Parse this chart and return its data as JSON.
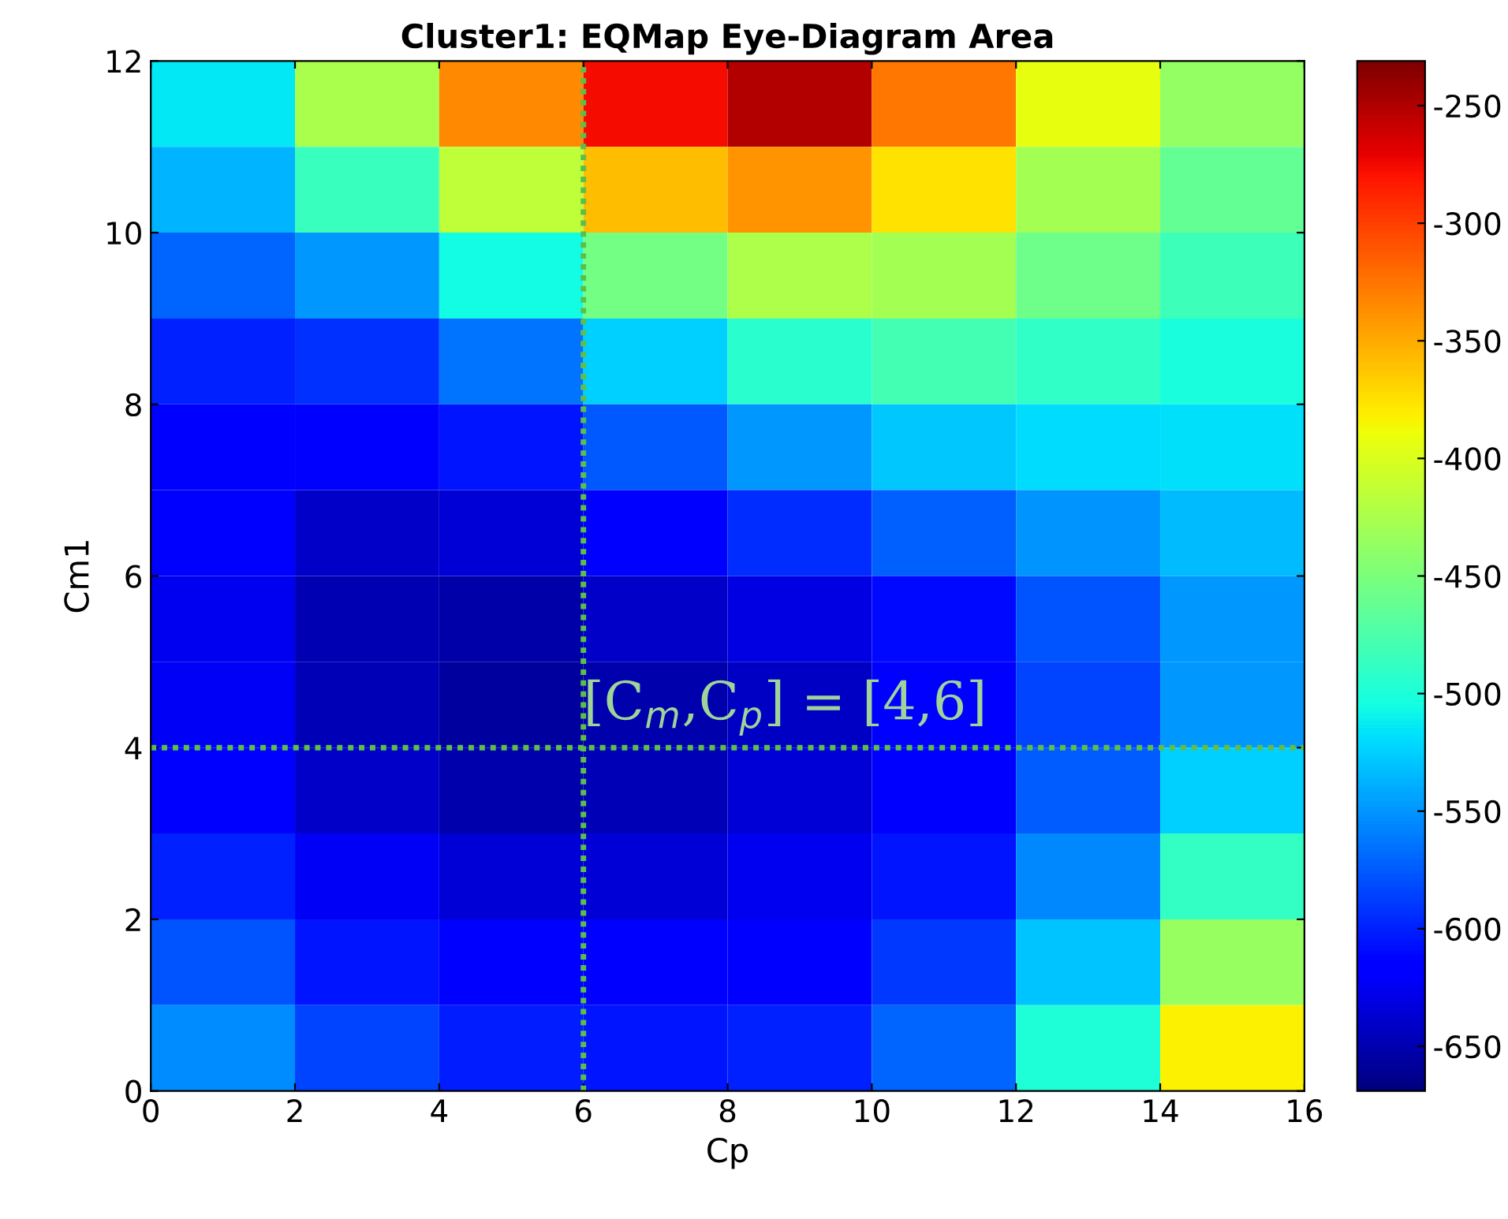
{
  "chart_data": {
    "type": "heatmap",
    "title": "Cluster1: EQMap Eye-Diagram Area",
    "xlabel": "Cp",
    "ylabel": "Cm1",
    "x": [
      1,
      3,
      5,
      7,
      9,
      11,
      13,
      15
    ],
    "y": [
      11.5,
      10.5,
      9.5,
      8.5,
      7.5,
      6.5,
      5.5,
      4.5,
      3.5,
      2.5,
      1.5,
      0.5
    ],
    "cells": [
      [
        -514,
        -425,
        -335,
        -276,
        -250,
        -326,
        -393,
        -438
      ],
      [
        -536,
        -485,
        -415,
        -358,
        -340,
        -375,
        -428,
        -463
      ],
      [
        -570,
        -548,
        -505,
        -455,
        -423,
        -428,
        -458,
        -483
      ],
      [
        -600,
        -593,
        -563,
        -525,
        -493,
        -480,
        -490,
        -503
      ],
      [
        -614,
        -621,
        -604,
        -575,
        -548,
        -528,
        -520,
        -518
      ],
      [
        -621,
        -640,
        -635,
        -614,
        -594,
        -573,
        -550,
        -533
      ],
      [
        -625,
        -649,
        -653,
        -641,
        -630,
        -610,
        -578,
        -548
      ],
      [
        -623,
        -648,
        -656,
        -651,
        -643,
        -621,
        -585,
        -548
      ],
      [
        -615,
        -640,
        -651,
        -648,
        -636,
        -614,
        -574,
        -525
      ],
      [
        -600,
        -624,
        -636,
        -635,
        -625,
        -604,
        -556,
        -488
      ],
      [
        -578,
        -604,
        -616,
        -619,
        -613,
        -589,
        -530,
        -435
      ],
      [
        -553,
        -585,
        -601,
        -605,
        -600,
        -570,
        -498,
        -383
      ]
    ],
    "xlim": [
      0,
      16
    ],
    "ylim": [
      0,
      12
    ],
    "xticks": [
      0,
      2,
      4,
      6,
      8,
      10,
      12,
      14,
      16
    ],
    "yticks": [
      0,
      2,
      4,
      6,
      8,
      10,
      12
    ],
    "clim": [
      -669,
      -231
    ],
    "cticks": [
      -650,
      -600,
      -550,
      -500,
      -450,
      -400,
      -350,
      -300,
      -250
    ],
    "ref_lines": [
      {
        "axis": "y",
        "value": 4,
        "color": "#5cbf4a",
        "line_style": "dotted"
      },
      {
        "axis": "x",
        "value": 6,
        "color": "#5cbf4a",
        "line_style": "dotted"
      }
    ],
    "annotations": [
      "[C$_{m}$,C$_{p}$] = [4,6]"
    ]
  }
}
